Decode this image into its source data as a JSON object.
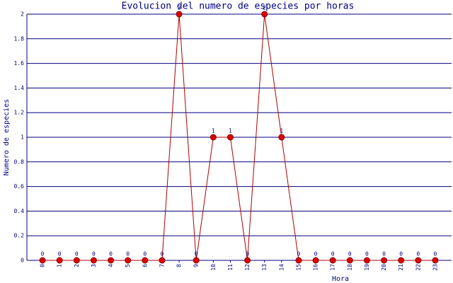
{
  "chart_data": {
    "type": "line",
    "title": "Evolucion del numero de especies por horas",
    "x_label": "Hora",
    "y_label": "Numero de especies",
    "categories": [
      "0",
      "1",
      "2",
      "3",
      "4",
      "5",
      "6",
      "7",
      "8",
      "9",
      "10",
      "11",
      "12",
      "13",
      "14",
      "15",
      "16",
      "17",
      "18",
      "19",
      "20",
      "21",
      "22",
      "23"
    ],
    "series": [
      {
        "name": "especies",
        "color": "#b00000",
        "values": [
          0,
          0,
          0,
          0,
          0,
          0,
          0,
          0,
          2,
          0,
          1,
          1,
          0,
          2,
          1,
          0,
          0,
          0,
          0,
          0,
          0,
          0,
          0,
          0
        ]
      }
    ],
    "ylim": [
      0,
      2
    ],
    "yticks": [
      0,
      0.2,
      0.4,
      0.6,
      0.8,
      1,
      1.2,
      1.4,
      1.6,
      1.8,
      2
    ],
    "grid": true
  }
}
